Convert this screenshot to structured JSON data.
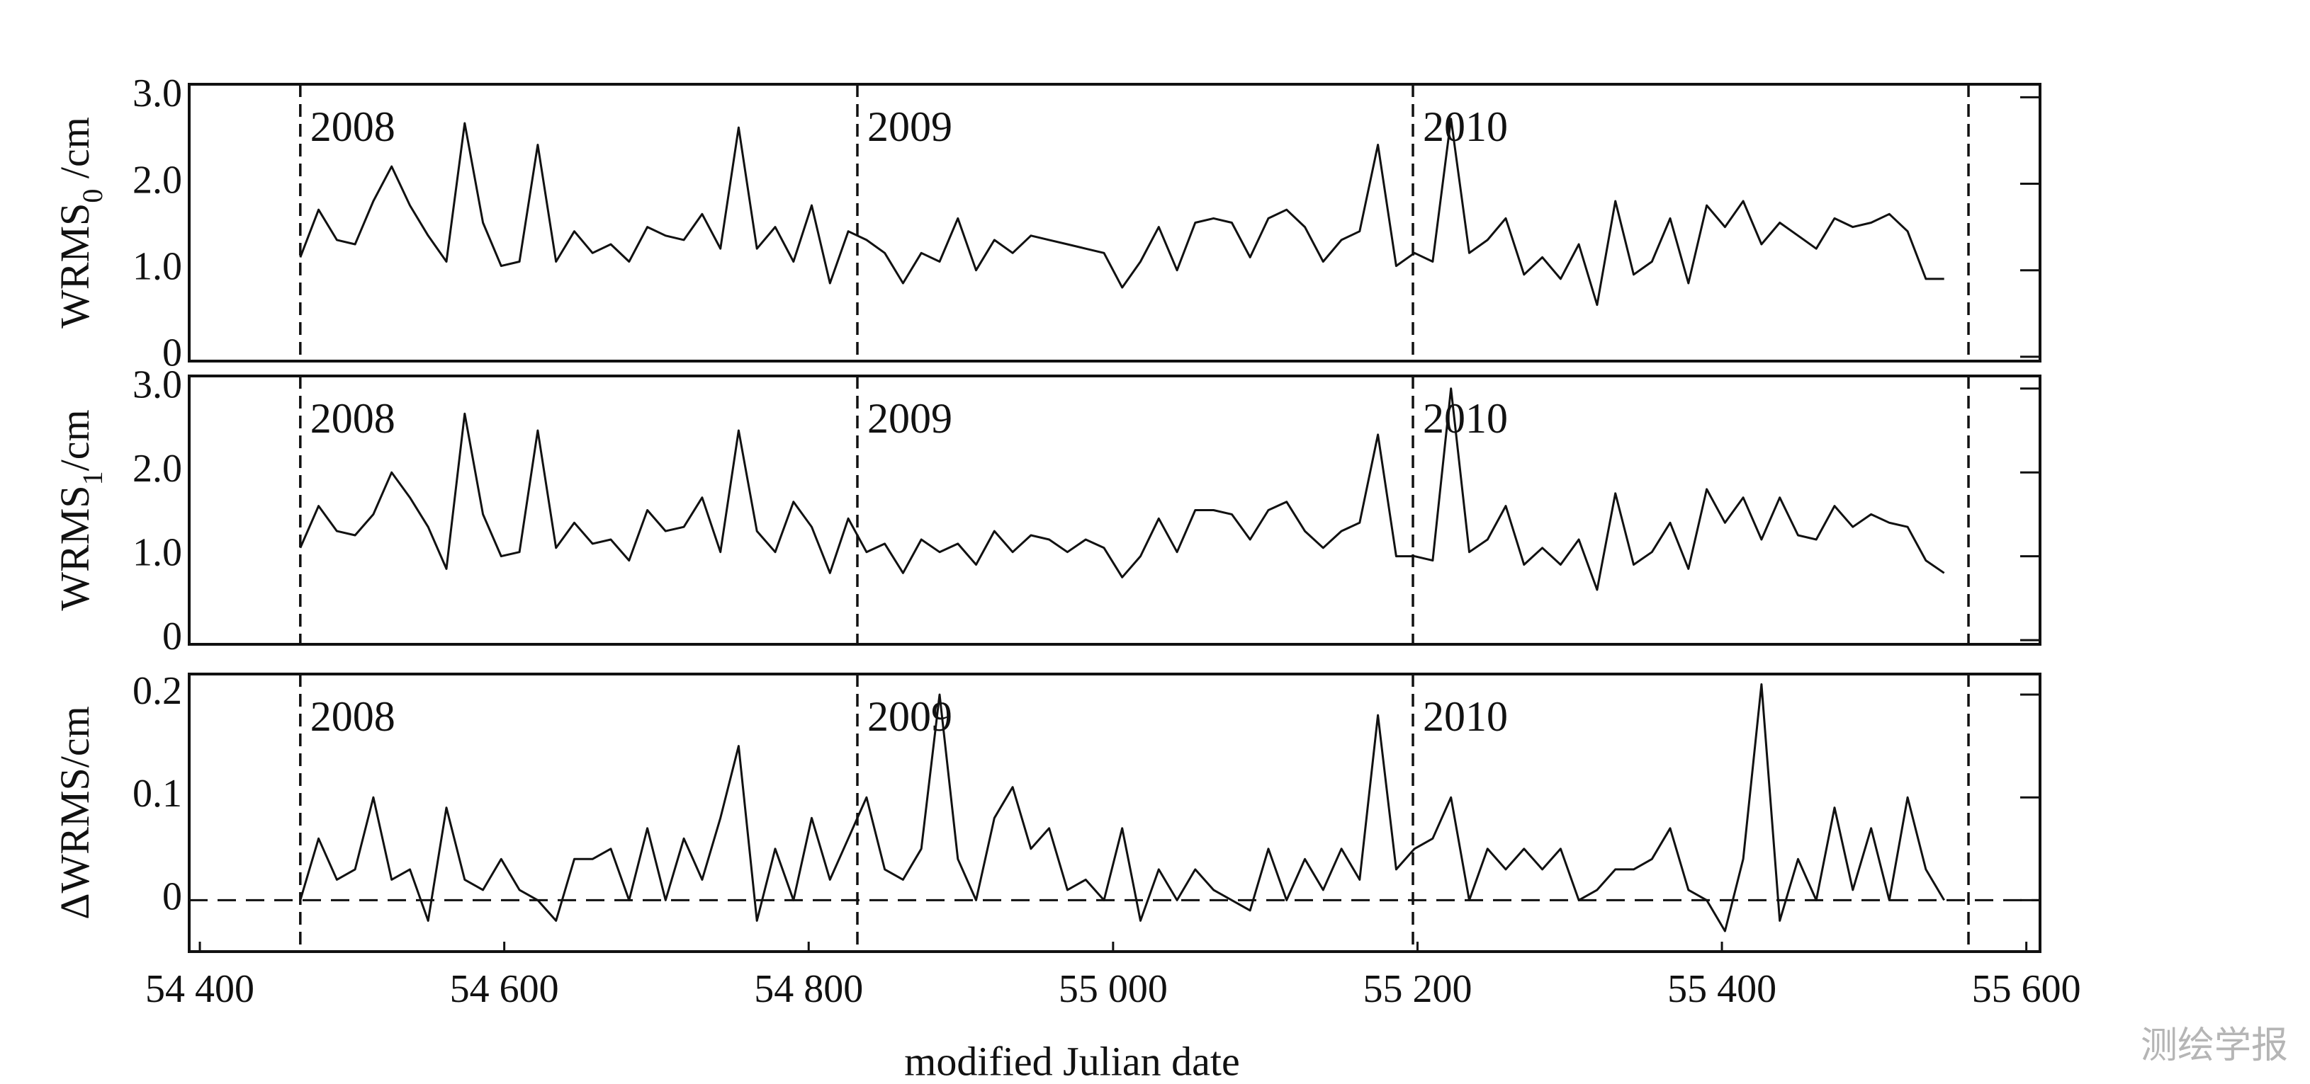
{
  "chart_data": [
    {
      "type": "line",
      "ylabel": "WRMS",
      "ylabel_sub": "0",
      "ylabel_unit": " /cm",
      "xlim": [
        54393,
        55609
      ],
      "ylim": [
        -0.05,
        3.15
      ],
      "yticks": [
        0,
        {
          "value": 1,
          "label": "1.0"
        },
        {
          "value": 2,
          "label": "2.0"
        },
        {
          "value": 3,
          "label": "3.0"
        }
      ],
      "year_lines": [
        54466,
        54832,
        55197,
        55562
      ],
      "year_labels": [
        "2008",
        "2009",
        "2010"
      ],
      "x": [
        54466,
        54478,
        54490,
        54502,
        54514,
        54526,
        54538,
        54550,
        54562,
        54574,
        54586,
        54598,
        54610,
        54622,
        54634,
        54646,
        54658,
        54670,
        54682,
        54694,
        54706,
        54718,
        54730,
        54742,
        54754,
        54766,
        54778,
        54790,
        54802,
        54814,
        54826,
        54838,
        54850,
        54862,
        54874,
        54886,
        54898,
        54910,
        54922,
        54934,
        54946,
        54958,
        54970,
        54982,
        54994,
        55006,
        55018,
        55030,
        55042,
        55054,
        55066,
        55078,
        55090,
        55102,
        55114,
        55126,
        55138,
        55150,
        55162,
        55174,
        55186,
        55198,
        55210,
        55222,
        55234,
        55246,
        55258,
        55270,
        55282,
        55294,
        55306,
        55318,
        55330,
        55342,
        55354,
        55366,
        55378,
        55390,
        55402,
        55414,
        55426,
        55438,
        55450,
        55462,
        55474,
        55486,
        55498,
        55510,
        55522,
        55534,
        55546
      ],
      "series": [
        {
          "color": "#111111",
          "values": [
            1.15,
            1.7,
            1.35,
            1.3,
            1.8,
            2.2,
            1.75,
            1.4,
            1.1,
            2.7,
            1.55,
            1.05,
            1.1,
            2.45,
            1.1,
            1.45,
            1.2,
            1.3,
            1.1,
            1.5,
            1.4,
            1.35,
            1.65,
            1.25,
            2.65,
            1.25,
            1.5,
            1.1,
            1.75,
            0.85,
            1.45,
            1.35,
            1.2,
            0.85,
            1.2,
            1.1,
            1.6,
            1.0,
            1.35,
            1.2,
            1.4,
            1.35,
            1.3,
            1.25,
            1.2,
            0.8,
            1.1,
            1.5,
            1.0,
            1.55,
            1.6,
            1.55,
            1.15,
            1.6,
            1.7,
            1.5,
            1.1,
            1.35,
            1.45,
            2.45,
            1.05,
            1.2,
            1.1,
            2.75,
            1.2,
            1.35,
            1.6,
            0.95,
            1.15,
            0.9,
            1.3,
            0.6,
            1.8,
            0.95,
            1.1,
            1.6,
            0.85,
            1.75,
            1.5,
            1.8,
            1.3,
            1.55,
            1.4,
            1.25,
            1.6,
            1.5,
            1.55,
            1.65,
            1.45,
            0.9,
            0.9
          ]
        }
      ]
    },
    {
      "type": "line",
      "ylabel": "WRMS",
      "ylabel_sub": "1",
      "ylabel_unit": "/cm",
      "xlim": [
        54393,
        55609
      ],
      "ylim": [
        -0.05,
        3.15
      ],
      "yticks": [
        0,
        {
          "value": 1,
          "label": "1.0"
        },
        {
          "value": 2,
          "label": "2.0"
        },
        {
          "value": 3,
          "label": "3.0"
        }
      ],
      "year_lines": [
        54466,
        54832,
        55197,
        55562
      ],
      "year_labels": [
        "2008",
        "2009",
        "2010"
      ],
      "x": [
        54466,
        54478,
        54490,
        54502,
        54514,
        54526,
        54538,
        54550,
        54562,
        54574,
        54586,
        54598,
        54610,
        54622,
        54634,
        54646,
        54658,
        54670,
        54682,
        54694,
        54706,
        54718,
        54730,
        54742,
        54754,
        54766,
        54778,
        54790,
        54802,
        54814,
        54826,
        54838,
        54850,
        54862,
        54874,
        54886,
        54898,
        54910,
        54922,
        54934,
        54946,
        54958,
        54970,
        54982,
        54994,
        55006,
        55018,
        55030,
        55042,
        55054,
        55066,
        55078,
        55090,
        55102,
        55114,
        55126,
        55138,
        55150,
        55162,
        55174,
        55186,
        55198,
        55210,
        55222,
        55234,
        55246,
        55258,
        55270,
        55282,
        55294,
        55306,
        55318,
        55330,
        55342,
        55354,
        55366,
        55378,
        55390,
        55402,
        55414,
        55426,
        55438,
        55450,
        55462,
        55474,
        55486,
        55498,
        55510,
        55522,
        55534,
        55546
      ],
      "series": [
        {
          "color": "#111111",
          "values": [
            1.1,
            1.6,
            1.3,
            1.25,
            1.5,
            2.0,
            1.7,
            1.35,
            0.85,
            2.7,
            1.5,
            1.0,
            1.05,
            2.5,
            1.1,
            1.4,
            1.15,
            1.2,
            0.95,
            1.55,
            1.3,
            1.35,
            1.7,
            1.05,
            2.5,
            1.3,
            1.05,
            1.65,
            1.35,
            0.8,
            1.45,
            1.05,
            1.15,
            0.8,
            1.2,
            1.05,
            1.15,
            0.9,
            1.3,
            1.05,
            1.25,
            1.2,
            1.05,
            1.2,
            1.1,
            0.75,
            1.0,
            1.45,
            1.05,
            1.55,
            1.55,
            1.5,
            1.2,
            1.55,
            1.65,
            1.3,
            1.1,
            1.3,
            1.4,
            2.45,
            1.0,
            1.0,
            0.95,
            3.0,
            1.05,
            1.2,
            1.6,
            0.9,
            1.1,
            0.9,
            1.2,
            0.6,
            1.75,
            0.9,
            1.05,
            1.4,
            0.85,
            1.8,
            1.4,
            1.7,
            1.2,
            1.7,
            1.25,
            1.2,
            1.6,
            1.35,
            1.5,
            1.4,
            1.35,
            0.95,
            0.8
          ]
        }
      ]
    },
    {
      "type": "line",
      "ylabel": "ΔWRMS/cm",
      "xlabel": "modified Julian date",
      "xlim": [
        54393,
        55609
      ],
      "ylim": [
        -0.05,
        0.22
      ],
      "xticks": [
        {
          "value": 54400,
          "label": "54 400"
        },
        {
          "value": 54600,
          "label": "54 600"
        },
        {
          "value": 54800,
          "label": "54 800"
        },
        {
          "value": 55000,
          "label": "55 000"
        },
        {
          "value": 55200,
          "label": "55 200"
        },
        {
          "value": 55400,
          "label": "55 400"
        },
        {
          "value": 55600,
          "label": "55 600"
        }
      ],
      "yticks": [
        0,
        0.1,
        0.2
      ],
      "reference_line": 0,
      "year_lines": [
        54466,
        54832,
        55197,
        55562
      ],
      "year_labels": [
        "2008",
        "2009",
        "2010"
      ],
      "x": [
        54466,
        54478,
        54490,
        54502,
        54514,
        54526,
        54538,
        54550,
        54562,
        54574,
        54586,
        54598,
        54610,
        54622,
        54634,
        54646,
        54658,
        54670,
        54682,
        54694,
        54706,
        54718,
        54730,
        54742,
        54754,
        54766,
        54778,
        54790,
        54802,
        54814,
        54826,
        54838,
        54850,
        54862,
        54874,
        54886,
        54898,
        54910,
        54922,
        54934,
        54946,
        54958,
        54970,
        54982,
        54994,
        55006,
        55018,
        55030,
        55042,
        55054,
        55066,
        55078,
        55090,
        55102,
        55114,
        55126,
        55138,
        55150,
        55162,
        55174,
        55186,
        55198,
        55210,
        55222,
        55234,
        55246,
        55258,
        55270,
        55282,
        55294,
        55306,
        55318,
        55330,
        55342,
        55354,
        55366,
        55378,
        55390,
        55402,
        55414,
        55426,
        55438,
        55450,
        55462,
        55474,
        55486,
        55498,
        55510,
        55522,
        55534,
        55546
      ],
      "series": [
        {
          "color": "#111111",
          "values": [
            0.0,
            0.06,
            0.02,
            0.03,
            0.1,
            0.02,
            0.03,
            -0.02,
            0.09,
            0.02,
            0.01,
            0.04,
            0.01,
            0.0,
            -0.02,
            0.04,
            0.04,
            0.05,
            0.0,
            0.07,
            0.0,
            0.06,
            0.02,
            0.08,
            0.15,
            -0.02,
            0.05,
            0.0,
            0.08,
            0.02,
            0.06,
            0.1,
            0.03,
            0.02,
            0.05,
            0.2,
            0.04,
            0.0,
            0.08,
            0.11,
            0.05,
            0.07,
            0.01,
            0.02,
            0.0,
            0.07,
            -0.02,
            0.03,
            0.0,
            0.03,
            0.01,
            0.0,
            -0.01,
            0.05,
            0.0,
            0.04,
            0.01,
            0.05,
            0.02,
            0.18,
            0.03,
            0.05,
            0.06,
            0.1,
            0.0,
            0.05,
            0.03,
            0.05,
            0.03,
            0.05,
            0.0,
            0.01,
            0.03,
            0.03,
            0.04,
            0.07,
            0.01,
            0.0,
            -0.03,
            0.04,
            0.21,
            -0.02,
            0.04,
            0.0,
            0.09,
            0.01,
            0.07,
            0.0,
            0.1,
            0.03,
            0.0
          ]
        }
      ]
    }
  ],
  "watermark": "测绘学报"
}
